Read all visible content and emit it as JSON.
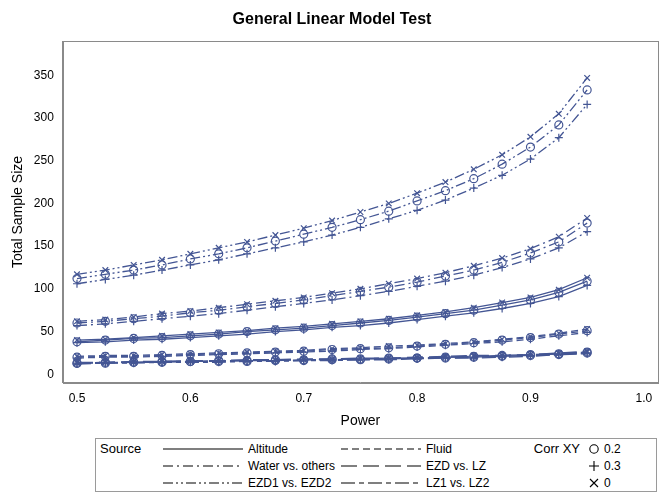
{
  "chart_data": {
    "type": "line",
    "title": "General Linear Model Test",
    "x_label": "Power",
    "y_label": "Total Sample Size",
    "x": [
      0.5,
      0.525,
      0.55,
      0.575,
      0.6,
      0.625,
      0.65,
      0.675,
      0.7,
      0.725,
      0.75,
      0.775,
      0.8,
      0.825,
      0.85,
      0.875,
      0.9,
      0.925,
      0.95
    ],
    "xlim": [
      0.4875,
      1.0125
    ],
    "xticks": [
      0.5,
      0.6,
      0.7,
      0.8,
      0.9,
      {
        "value": 1,
        "label": "1.0"
      }
    ],
    "ylim": [
      -10,
      390
    ],
    "yticks": [
      0,
      50,
      100,
      150,
      200,
      250,
      300,
      350
    ],
    "grid": false,
    "legend": "bottom",
    "color": "#445694",
    "legend_groups": [
      {
        "title": "Source",
        "entries": [
          {
            "name": "Altitude",
            "line_style": "solid"
          },
          {
            "name": "Fluid",
            "line_style": "dash"
          },
          {
            "name": "Water vs. others",
            "line_style": "dashdot"
          },
          {
            "name": "EZD vs. LZ",
            "line_style": "longdash"
          },
          {
            "name": "EZD1 vs. EZD2",
            "line_style": "dashdotdot"
          },
          {
            "name": "LZ1 vs. LZ2",
            "line_style": "longdashshortdash"
          }
        ]
      },
      {
        "title": "Corr XY",
        "entries": [
          {
            "name": "0.2",
            "marker": "circle"
          },
          {
            "name": "0.3",
            "marker": "plus"
          },
          {
            "name": "0",
            "marker": "x"
          }
        ]
      }
    ],
    "series": [
      {
        "source": "EZD1 vs. EZD2",
        "corr": "0",
        "values": [
          117,
          122,
          128,
          134,
          141,
          148,
          155,
          163,
          171,
          180,
          190,
          200,
          212,
          225,
          240,
          257,
          278,
          305,
          347
        ]
      },
      {
        "source": "EZD1 vs. EZD2",
        "corr": "0.2",
        "values": [
          112,
          117,
          122,
          128,
          135,
          141,
          148,
          156,
          164,
          172,
          181,
          191,
          203,
          215,
          229,
          246,
          266,
          292,
          333
        ]
      },
      {
        "source": "EZD1 vs. EZD2",
        "corr": "0.3",
        "values": [
          106,
          111,
          116,
          122,
          128,
          134,
          141,
          148,
          155,
          163,
          172,
          182,
          192,
          204,
          218,
          233,
          252,
          277,
          316
        ]
      },
      {
        "source": "Water vs. others",
        "corr": "0",
        "values": [
          62,
          64,
          67,
          71,
          74,
          78,
          82,
          86,
          90,
          95,
          100,
          106,
          112,
          119,
          127,
          136,
          147,
          161,
          183
        ]
      },
      {
        "source": "Water vs. others",
        "corr": "0.2",
        "values": [
          60,
          62,
          65,
          68,
          72,
          75,
          79,
          83,
          87,
          92,
          97,
          102,
          108,
          115,
          122,
          131,
          142,
          155,
          177
        ]
      },
      {
        "source": "Water vs. others",
        "corr": "0.3",
        "values": [
          57,
          59,
          62,
          65,
          68,
          71,
          75,
          79,
          83,
          87,
          92,
          97,
          103,
          109,
          116,
          125,
          135,
          148,
          167
        ]
      },
      {
        "source": "Altitude",
        "corr": "0",
        "values": [
          40,
          41,
          43,
          45,
          47,
          49,
          51,
          54,
          56,
          59,
          62,
          65,
          69,
          73,
          78,
          84,
          90,
          99,
          113
        ]
      },
      {
        "source": "Altitude",
        "corr": "0.2",
        "values": [
          38,
          40,
          42,
          43,
          45,
          47,
          50,
          52,
          54,
          57,
          60,
          63,
          67,
          71,
          75,
          81,
          87,
          96,
          109
        ]
      },
      {
        "source": "Altitude",
        "corr": "0.3",
        "values": [
          37,
          38,
          40,
          41,
          43,
          45,
          47,
          50,
          52,
          55,
          57,
          60,
          64,
          68,
          72,
          77,
          83,
          91,
          104
        ]
      },
      {
        "source": "Fluid",
        "corr": "0",
        "values": [
          21,
          22,
          22,
          23,
          24,
          25,
          26,
          27,
          28,
          30,
          31,
          33,
          34,
          36,
          38,
          41,
          44,
          48,
          53
        ]
      },
      {
        "source": "Fluid",
        "corr": "0.2",
        "values": [
          20,
          21,
          21,
          22,
          23,
          24,
          25,
          26,
          27,
          29,
          30,
          31,
          33,
          35,
          37,
          40,
          43,
          47,
          51
        ]
      },
      {
        "source": "Fluid",
        "corr": "0.3",
        "values": [
          19,
          20,
          20,
          21,
          22,
          23,
          24,
          25,
          26,
          27,
          29,
          30,
          32,
          34,
          36,
          38,
          41,
          45,
          49
        ]
      },
      {
        "source": "EZD vs. LZ",
        "corr": "0",
        "values": [
          14,
          14,
          15,
          15,
          16,
          16,
          17,
          17,
          18,
          18,
          19,
          19,
          20,
          21,
          22,
          22,
          23,
          25,
          27
        ]
      },
      {
        "source": "EZD vs. LZ",
        "corr": "0.2",
        "values": [
          13,
          14,
          14,
          15,
          15,
          16,
          16,
          17,
          17,
          18,
          18,
          19,
          19,
          20,
          21,
          22,
          23,
          24,
          26
        ]
      },
      {
        "source": "EZD vs. LZ",
        "corr": "0.3",
        "values": [
          13,
          13,
          14,
          14,
          15,
          15,
          16,
          16,
          17,
          17,
          18,
          18,
          19,
          20,
          20,
          21,
          22,
          24,
          25
        ]
      },
      {
        "source": "LZ1 vs. LZ2",
        "corr": "0",
        "values": [
          13,
          14,
          14,
          15,
          15,
          16,
          16,
          16,
          17,
          17,
          18,
          19,
          19,
          20,
          21,
          22,
          23,
          24,
          26
        ]
      },
      {
        "source": "LZ1 vs. LZ2",
        "corr": "0.2",
        "values": [
          13,
          13,
          14,
          14,
          15,
          15,
          15,
          16,
          16,
          17,
          17,
          18,
          19,
          19,
          20,
          21,
          22,
          23,
          25
        ]
      },
      {
        "source": "LZ1 vs. LZ2",
        "corr": "0.3",
        "values": [
          12,
          13,
          13,
          14,
          14,
          14,
          15,
          15,
          16,
          16,
          17,
          17,
          18,
          19,
          19,
          20,
          21,
          23,
          24
        ]
      }
    ]
  }
}
